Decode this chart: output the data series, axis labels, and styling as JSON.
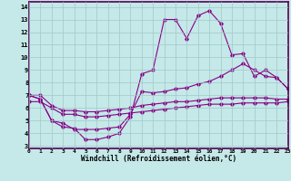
{
  "xlabel": "Windchill (Refroidissement éolien,°C)",
  "bg_color": "#c5e8e8",
  "line_color": "#880088",
  "grid_color": "#a0c8c8",
  "x_ticks": [
    0,
    1,
    2,
    3,
    4,
    5,
    6,
    7,
    8,
    9,
    10,
    11,
    12,
    13,
    14,
    15,
    16,
    17,
    18,
    19,
    20,
    21,
    22,
    23
  ],
  "y_ticks": [
    3,
    4,
    5,
    6,
    7,
    8,
    9,
    10,
    11,
    12,
    13,
    14
  ],
  "xlim": [
    0,
    23
  ],
  "ylim": [
    2.8,
    14.4
  ],
  "line1_x": [
    0,
    1,
    2,
    3,
    4,
    5,
    6,
    7,
    8,
    9,
    10,
    11,
    12,
    13,
    14,
    15,
    16,
    17,
    18,
    19,
    20,
    21,
    22,
    23
  ],
  "line1_y": [
    7.0,
    6.7,
    5.0,
    4.5,
    4.4,
    3.5,
    3.5,
    3.7,
    4.0,
    5.3,
    8.7,
    9.0,
    13.0,
    13.0,
    11.5,
    13.3,
    13.7,
    12.7,
    10.2,
    10.3,
    8.5,
    9.0,
    8.4,
    7.5
  ],
  "line2_x": [
    0,
    1,
    2,
    3,
    4,
    5,
    6,
    7,
    8,
    9,
    10,
    11,
    12,
    13,
    14,
    15,
    16,
    17,
    18,
    19,
    20,
    21,
    22,
    23
  ],
  "line2_y": [
    7.0,
    6.7,
    5.0,
    4.8,
    4.3,
    4.3,
    4.3,
    4.4,
    4.5,
    5.5,
    7.3,
    7.2,
    7.3,
    7.5,
    7.6,
    7.9,
    8.1,
    8.5,
    9.0,
    9.5,
    9.0,
    8.5,
    8.4,
    7.5
  ],
  "line3_x": [
    0,
    1,
    2,
    3,
    4,
    5,
    6,
    7,
    8,
    9,
    10,
    11,
    12,
    13,
    14,
    15,
    16,
    17,
    18,
    19,
    20,
    21,
    22,
    23
  ],
  "line3_y": [
    7.0,
    7.0,
    6.2,
    5.8,
    5.8,
    5.7,
    5.7,
    5.8,
    5.9,
    6.0,
    6.2,
    6.3,
    6.4,
    6.5,
    6.5,
    6.6,
    6.7,
    6.8,
    6.8,
    6.8,
    6.8,
    6.8,
    6.7,
    6.7
  ],
  "line4_x": [
    0,
    1,
    2,
    3,
    4,
    5,
    6,
    7,
    8,
    9,
    10,
    11,
    12,
    13,
    14,
    15,
    16,
    17,
    18,
    19,
    20,
    21,
    22,
    23
  ],
  "line4_y": [
    6.5,
    6.5,
    6.0,
    5.5,
    5.5,
    5.3,
    5.3,
    5.4,
    5.5,
    5.6,
    5.7,
    5.8,
    5.9,
    6.0,
    6.1,
    6.2,
    6.3,
    6.3,
    6.3,
    6.4,
    6.4,
    6.4,
    6.4,
    6.5
  ]
}
